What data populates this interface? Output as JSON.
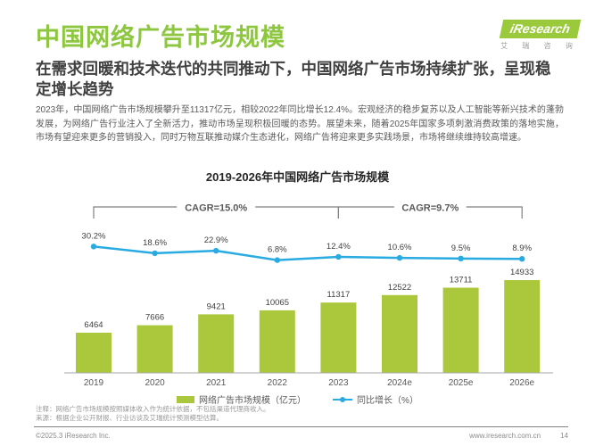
{
  "header": {
    "title": "中国网络广告市场规模",
    "logo_brand": "iResearch",
    "logo_subtext": "艾 瑞 咨 询",
    "subtitle": "在需求回暖和技术迭代的共同推动下，中国网络广告市场持续扩张，呈现稳定增长趋势"
  },
  "body": {
    "paragraph": "2023年，中国网络广告市场规模攀升至11317亿元，相较2022年同比增长12.4%。宏观经济的稳步复苏以及人工智能等新兴技术的蓬勃发展，为网络广告行业注入了全新活力，推动市场呈现积极回暖的态势。展望未来，随着2025年国家多项刺激消费政策的落地实施，市场有望迎来更多的营销投入，同时万物互联推动媒介生态进化，网络广告将迎来更多实践场景，市场将继续维持较高增速。"
  },
  "chart_data": {
    "type": "bar",
    "title": "2019-2026年中国网络广告市场规模",
    "categories": [
      "2019",
      "2020",
      "2021",
      "2022",
      "2023",
      "2024e",
      "2025e",
      "2026e"
    ],
    "series": [
      {
        "name": "网络广告市场规模（亿元）",
        "type": "bar",
        "color": "#ABC83C",
        "values": [
          6464,
          7666,
          9421,
          10065,
          11317,
          12522,
          13711,
          14933
        ]
      },
      {
        "name": "同比增长（%）",
        "type": "line",
        "color": "#29ABE2",
        "values": [
          30.2,
          18.6,
          22.9,
          6.8,
          12.4,
          10.6,
          9.5,
          8.9
        ]
      }
    ],
    "annotations": [
      {
        "label": "CAGR=15.0%",
        "from": "2019",
        "to": "2023"
      },
      {
        "label": "CAGR=9.7%",
        "from": "2023",
        "to": "2026e"
      }
    ],
    "ylim": [
      0,
      16000
    ],
    "legend_position": "bottom",
    "grid": false
  },
  "footnotes": [
    "注释：网络广告市场规模按照媒体收入作为统计依据，不包括渠道代理商收入。",
    "来源：根据企业公开财报、行业访谈及艾瑞统计预测模型估算。"
  ],
  "footer": {
    "copyright": "©2025.3 iResearch Inc.",
    "website": "www.iresearch.com.cn",
    "page": "14"
  },
  "colors": {
    "accent_green": "#8DC63F",
    "bar_green": "#ABC83C",
    "line_blue": "#29ABE2"
  }
}
